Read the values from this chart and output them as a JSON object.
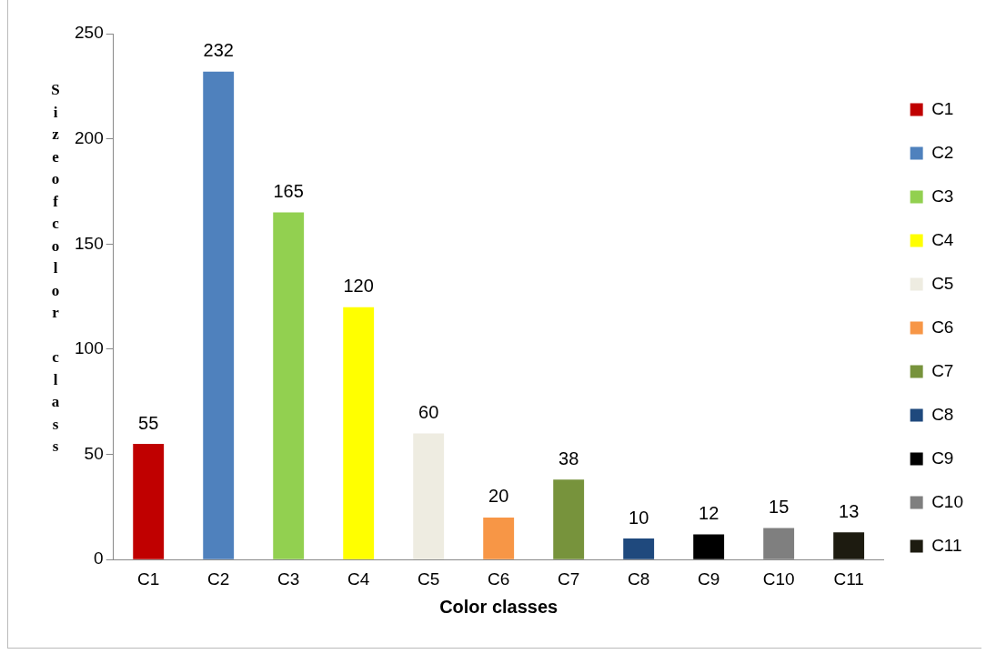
{
  "chart_data": {
    "type": "bar",
    "xlabel": "Color classes",
    "ylabel": "Sizeofcolor class",
    "categories": [
      "C1",
      "C2",
      "C3",
      "C4",
      "C5",
      "C6",
      "C7",
      "C8",
      "C9",
      "C10",
      "C11"
    ],
    "series": [
      {
        "name": "C1",
        "color": "#c00000",
        "values": [
          55,
          null,
          null,
          null,
          null,
          null,
          null,
          null,
          null,
          null,
          null
        ]
      },
      {
        "name": "C2",
        "color": "#4f81bd",
        "values": [
          null,
          232,
          null,
          null,
          null,
          null,
          null,
          null,
          null,
          null,
          null
        ]
      },
      {
        "name": "C3",
        "color": "#92d050",
        "values": [
          null,
          null,
          165,
          null,
          null,
          null,
          null,
          null,
          null,
          null,
          null
        ]
      },
      {
        "name": "C4",
        "color": "#ffff00",
        "values": [
          null,
          null,
          null,
          120,
          null,
          null,
          null,
          null,
          null,
          null,
          null
        ]
      },
      {
        "name": "C5",
        "color": "#eeece1",
        "values": [
          null,
          null,
          null,
          null,
          60,
          null,
          null,
          null,
          null,
          null,
          null
        ]
      },
      {
        "name": "C6",
        "color": "#f79646",
        "values": [
          null,
          null,
          null,
          null,
          null,
          20,
          null,
          null,
          null,
          null,
          null
        ]
      },
      {
        "name": "C7",
        "color": "#77933c",
        "values": [
          null,
          null,
          null,
          null,
          null,
          null,
          38,
          null,
          null,
          null,
          null
        ]
      },
      {
        "name": "C8",
        "color": "#1f497d",
        "values": [
          null,
          null,
          null,
          null,
          null,
          null,
          null,
          10,
          null,
          null,
          null
        ]
      },
      {
        "name": "C9",
        "color": "#000000",
        "values": [
          null,
          null,
          null,
          null,
          null,
          null,
          null,
          null,
          12,
          null,
          null
        ]
      },
      {
        "name": "C10",
        "color": "#7f7f7f",
        "values": [
          null,
          null,
          null,
          null,
          null,
          null,
          null,
          null,
          null,
          15,
          null
        ]
      },
      {
        "name": "C11",
        "color": "#1d1b10",
        "values": [
          null,
          null,
          null,
          null,
          null,
          null,
          null,
          null,
          null,
          null,
          13
        ]
      }
    ],
    "ylim": [
      0,
      250
    ],
    "yticks": [
      0,
      50,
      100,
      150,
      200,
      250
    ],
    "grid": false,
    "legend": "right",
    "data_labels": true
  }
}
